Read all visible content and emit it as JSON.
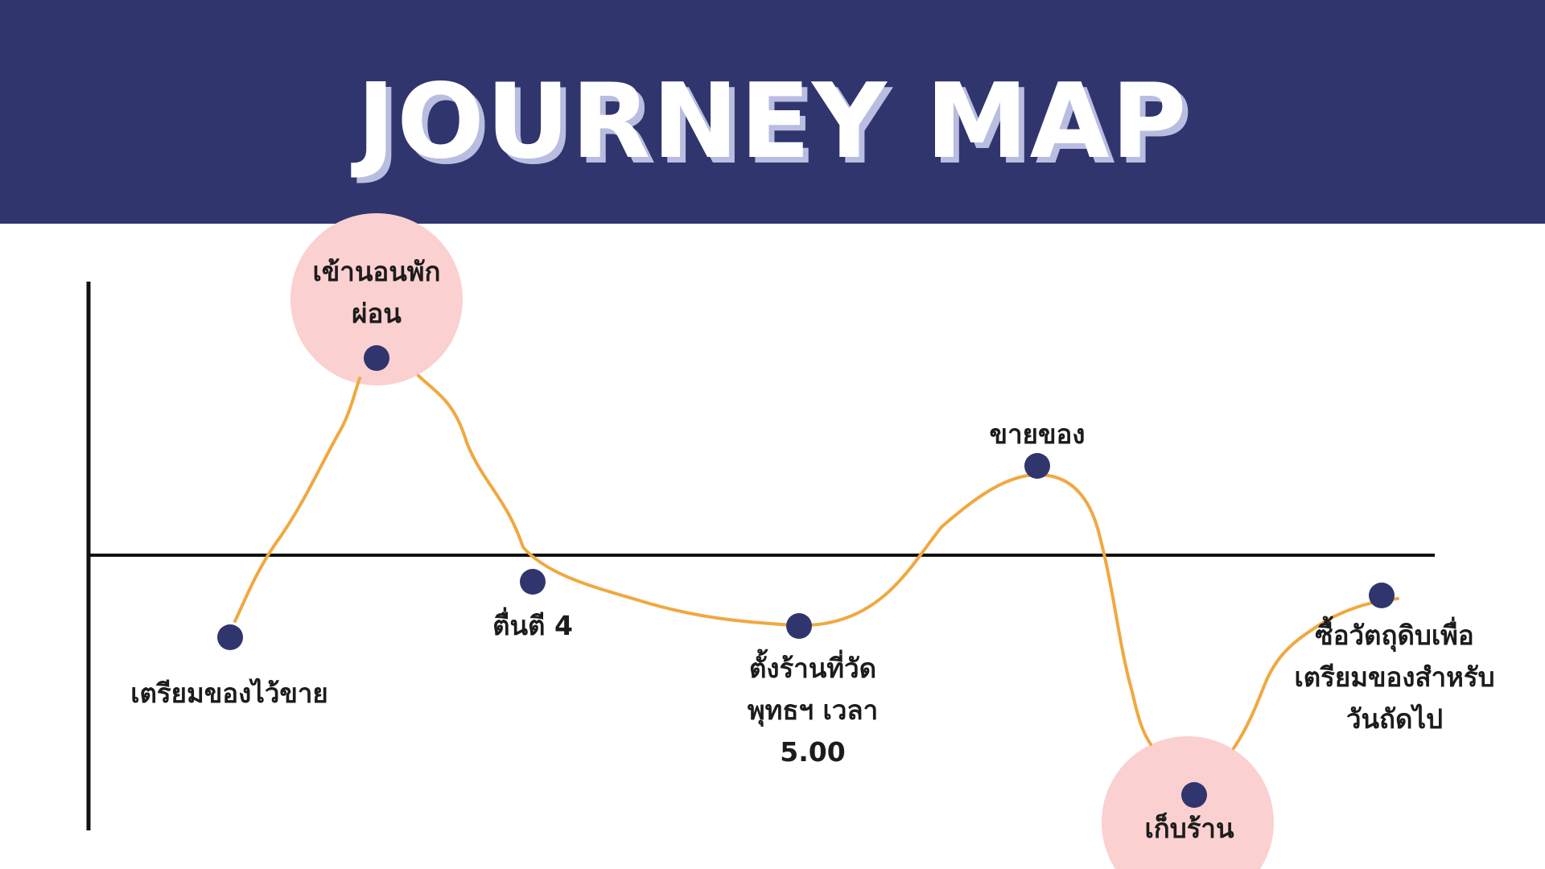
{
  "header": {
    "title": "JOURNEY MAP"
  },
  "colors": {
    "header_bg": "#31356e",
    "title_text": "#ffffff",
    "title_shadow": "#b9bde0",
    "curve": "#f0a841",
    "node": "#31356e",
    "highlight": "#fbd0d0",
    "axis": "#111111"
  },
  "steps": [
    {
      "label": "เตรียมของไว้ขาย",
      "highlighted": false
    },
    {
      "label": "เข้านอนพัก\nผ่อน",
      "highlighted": true
    },
    {
      "label": "ตื่นตี 4",
      "highlighted": false
    },
    {
      "label": "ตั้งร้านที่วัด\nพุทธฯ เวลา\n5.00",
      "highlighted": false
    },
    {
      "label": "ขายของ",
      "highlighted": false
    },
    {
      "label": "เก็บร้าน",
      "highlighted": true
    },
    {
      "label": "ซื้อวัตถุดิบเพื่อ\nเตรียมของสำหรับ\nวันถัดไป",
      "highlighted": false
    }
  ]
}
